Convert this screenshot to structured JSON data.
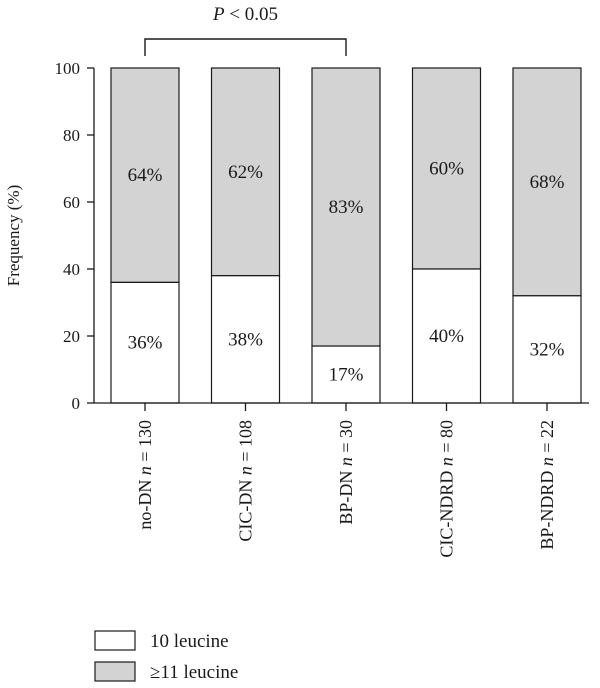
{
  "chart_data": {
    "type": "bar",
    "stacked": true,
    "percent": true,
    "ylabel": "Frequency (%)",
    "ylim": [
      0,
      100
    ],
    "yticks": [
      0,
      20,
      40,
      60,
      80,
      100
    ],
    "categories": [
      {
        "prefix": "no-DN ",
        "n": "130"
      },
      {
        "prefix": "CIC-DN ",
        "n": "108"
      },
      {
        "prefix": "BP-DN ",
        "n": "30"
      },
      {
        "prefix": "CIC-NDRD ",
        "n": "80"
      },
      {
        "prefix": "BP-NDRD ",
        "n": "22"
      }
    ],
    "series": [
      {
        "name": "10 leucine",
        "values": [
          36,
          38,
          17,
          40,
          32
        ],
        "labels": [
          "36%",
          "38%",
          "17%",
          "40%",
          "32%"
        ],
        "color": "#ffffff"
      },
      {
        "name": "≥11 leucine",
        "values": [
          64,
          62,
          83,
          60,
          68
        ],
        "labels": [
          "64%",
          "62%",
          "83%",
          "60%",
          "68%"
        ],
        "color": "#d3d3d3"
      }
    ],
    "annotation": {
      "italic": "P",
      "rest": " < 0.05",
      "from_category": 0,
      "to_category": 2
    },
    "legend": "bottom-left"
  }
}
